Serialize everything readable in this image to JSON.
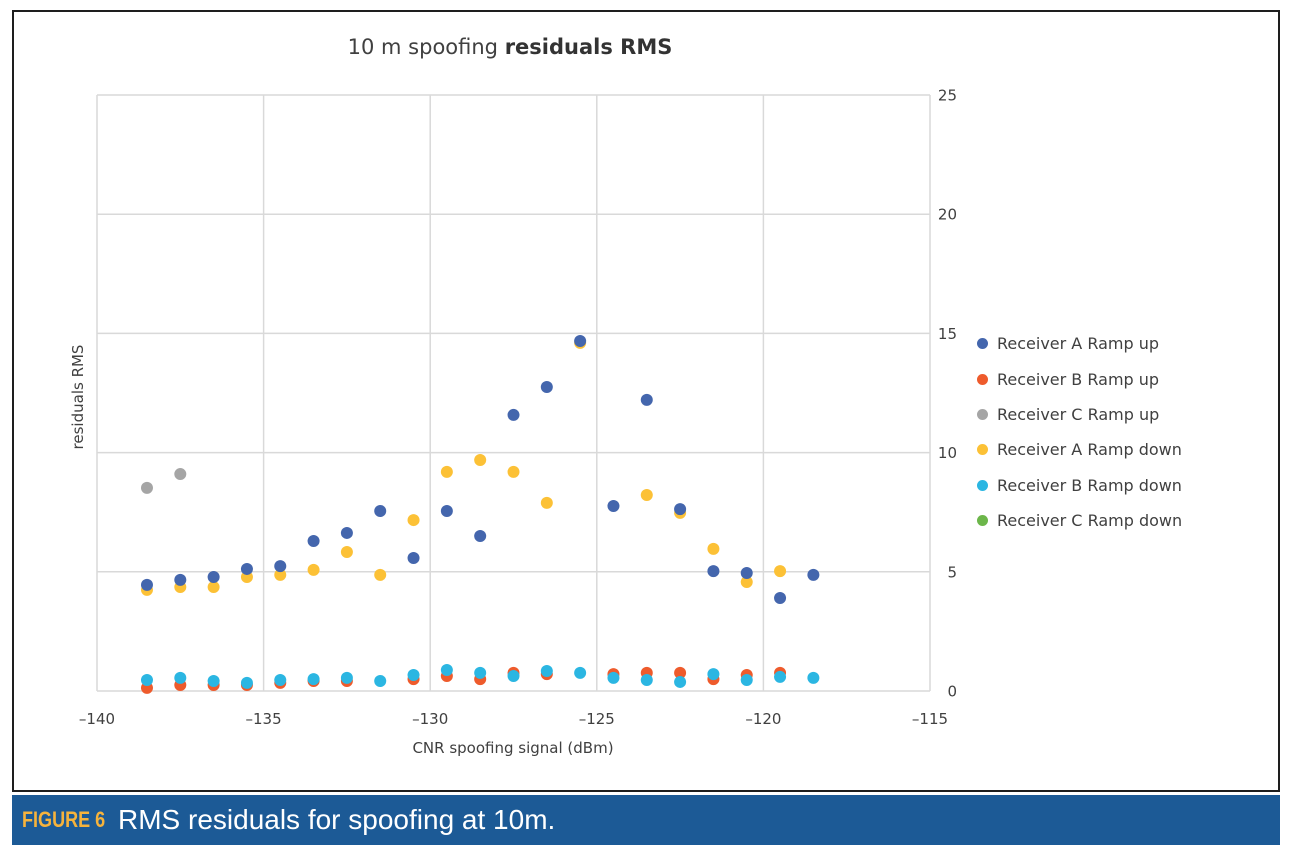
{
  "figure": {
    "label": "FIGURE 6",
    "caption": "RMS residuals for spoofing at 10m."
  },
  "colors": {
    "caption_bar": "#1C5A96",
    "figure_label": "#F6B33C",
    "caption_text": "#FFFFFF",
    "gridline": "#D9D9D9",
    "frame": "#1E1E1E"
  },
  "chart_data": {
    "type": "scatter",
    "title": {
      "regular": "10 m spoofing",
      "bold": "residuals RMS"
    },
    "xlabel": "CNR spoofing signal (dBm)",
    "ylabel": "residuals RMS",
    "xlim": [
      -140,
      -115
    ],
    "ylim": [
      0,
      25
    ],
    "xticks": [
      -140,
      -135,
      -130,
      -125,
      -120,
      -115
    ],
    "xtick_labels": [
      "–140",
      "–135",
      "–130",
      "–125",
      "–120",
      "–115"
    ],
    "yticks": [
      0,
      5,
      10,
      15,
      20,
      25
    ],
    "ytick_labels": [
      "0",
      "5",
      "10",
      "15",
      "20",
      "25"
    ],
    "grid": true,
    "legend_position": "right",
    "series": [
      {
        "name": "Receiver A Ramp up",
        "color": "#4466AD",
        "points": [
          [
            -138.5,
            4.45
          ],
          [
            -137.5,
            4.66
          ],
          [
            -136.5,
            4.78
          ],
          [
            -135.5,
            5.12
          ],
          [
            -134.5,
            5.24
          ],
          [
            -133.5,
            6.29
          ],
          [
            -132.5,
            6.63
          ],
          [
            -131.5,
            7.55
          ],
          [
            -130.5,
            5.58
          ],
          [
            -129.5,
            7.55
          ],
          [
            -128.5,
            6.5
          ],
          [
            -127.5,
            11.58
          ],
          [
            -126.5,
            12.75
          ],
          [
            -125.5,
            14.68
          ],
          [
            -124.5,
            7.76
          ],
          [
            -123.5,
            12.21
          ],
          [
            -122.5,
            7.63
          ],
          [
            -121.5,
            5.03
          ],
          [
            -120.5,
            4.95
          ],
          [
            -119.5,
            3.9
          ],
          [
            -118.5,
            4.87
          ]
        ]
      },
      {
        "name": "Receiver B Ramp up",
        "color": "#EE5B2C",
        "points": [
          [
            -138.5,
            0.13
          ],
          [
            -137.5,
            0.25
          ],
          [
            -136.5,
            0.25
          ],
          [
            -135.5,
            0.25
          ],
          [
            -134.5,
            0.34
          ],
          [
            -133.5,
            0.42
          ],
          [
            -132.5,
            0.42
          ],
          [
            -130.5,
            0.5
          ],
          [
            -129.5,
            0.63
          ],
          [
            -128.5,
            0.5
          ],
          [
            -127.5,
            0.76
          ],
          [
            -126.5,
            0.71
          ],
          [
            -124.5,
            0.71
          ],
          [
            -123.5,
            0.76
          ],
          [
            -122.5,
            0.76
          ],
          [
            -121.5,
            0.5
          ],
          [
            -120.5,
            0.67
          ],
          [
            -119.5,
            0.76
          ]
        ]
      },
      {
        "name": "Receiver C Ramp up",
        "color": "#A5A5A5",
        "points": [
          [
            -138.5,
            8.52
          ],
          [
            -137.5,
            9.1
          ]
        ]
      },
      {
        "name": "Receiver A Ramp down",
        "color": "#FCC136",
        "points": [
          [
            -138.5,
            4.24
          ],
          [
            -137.5,
            4.36
          ],
          [
            -136.5,
            4.36
          ],
          [
            -135.5,
            4.78
          ],
          [
            -134.5,
            4.87
          ],
          [
            -133.5,
            5.08
          ],
          [
            -132.5,
            5.83
          ],
          [
            -131.5,
            4.87
          ],
          [
            -130.5,
            7.17
          ],
          [
            -129.5,
            9.19
          ],
          [
            -128.5,
            9.69
          ],
          [
            -127.5,
            9.19
          ],
          [
            -126.5,
            7.89
          ],
          [
            -125.5,
            14.6
          ],
          [
            -123.5,
            8.22
          ],
          [
            -122.5,
            7.47
          ],
          [
            -121.5,
            5.96
          ],
          [
            -120.5,
            4.57
          ],
          [
            -119.5,
            5.03
          ]
        ]
      },
      {
        "name": "Receiver B Ramp down",
        "color": "#2BB6E2",
        "points": [
          [
            -138.5,
            0.46
          ],
          [
            -137.5,
            0.55
          ],
          [
            -136.5,
            0.42
          ],
          [
            -135.5,
            0.34
          ],
          [
            -134.5,
            0.46
          ],
          [
            -133.5,
            0.5
          ],
          [
            -132.5,
            0.55
          ],
          [
            -131.5,
            0.42
          ],
          [
            -130.5,
            0.67
          ],
          [
            -129.5,
            0.88
          ],
          [
            -128.5,
            0.76
          ],
          [
            -127.5,
            0.63
          ],
          [
            -126.5,
            0.84
          ],
          [
            -125.5,
            0.76
          ],
          [
            -124.5,
            0.55
          ],
          [
            -123.5,
            0.46
          ],
          [
            -122.5,
            0.38
          ],
          [
            -121.5,
            0.71
          ],
          [
            -120.5,
            0.46
          ],
          [
            -119.5,
            0.59
          ],
          [
            -118.5,
            0.55
          ]
        ]
      },
      {
        "name": "Receiver C Ramp down",
        "color": "#6CB64A",
        "points": []
      }
    ]
  }
}
